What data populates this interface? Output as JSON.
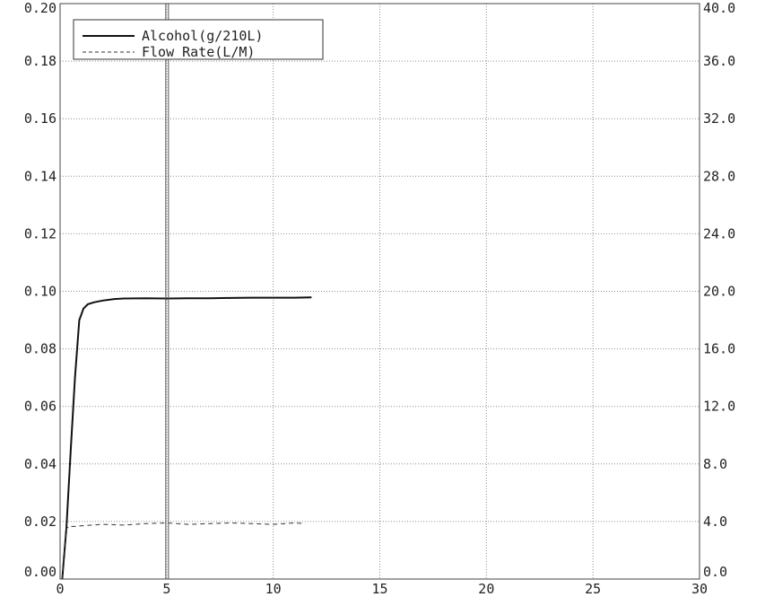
{
  "chart_data": {
    "type": "line",
    "title": "",
    "xlabel": "",
    "ylabel": "",
    "xlim": [
      0,
      30
    ],
    "ylim": [
      0,
      0.2
    ],
    "y2lim": [
      0,
      40
    ],
    "grid": true,
    "legend_position": "top-left",
    "x_ticks": [
      "0",
      "5",
      "10",
      "15",
      "20",
      "25",
      "30"
    ],
    "y_ticks": [
      "0.00",
      "0.02",
      "0.04",
      "0.06",
      "0.08",
      "0.10",
      "0.12",
      "0.14",
      "0.16",
      "0.18",
      "0.20"
    ],
    "y2_ticks": [
      "0.0",
      "4.0",
      "8.0",
      "12.0",
      "16.0",
      "20.0",
      "24.0",
      "28.0",
      "32.0",
      "36.0",
      "40.0"
    ],
    "series": [
      {
        "name": "Alcohol(g/210L)",
        "axis": "left",
        "style": "solid",
        "color": "#111111",
        "x": [
          0.1,
          0.3,
          0.5,
          0.7,
          0.9,
          1.1,
          1.3,
          1.6,
          2.0,
          2.5,
          3.0,
          4.0,
          5.0,
          6.0,
          7.0,
          8.0,
          9.0,
          10.0,
          11.0,
          11.8
        ],
        "y": [
          0.0,
          0.018,
          0.045,
          0.07,
          0.09,
          0.094,
          0.0955,
          0.0962,
          0.0968,
          0.0973,
          0.0975,
          0.0976,
          0.0975,
          0.0976,
          0.0976,
          0.0977,
          0.0978,
          0.0978,
          0.0978,
          0.0979
        ]
      },
      {
        "name": "Flow Rate(L/M)",
        "axis": "right",
        "style": "dashed",
        "color": "#333333",
        "x": [
          0.1,
          0.2,
          0.3,
          0.45,
          0.6,
          1.0,
          2.0,
          3.0,
          4.0,
          5.0,
          6.0,
          7.0,
          8.0,
          9.0,
          10.0,
          11.0,
          11.5
        ],
        "y": [
          0.0,
          1.8,
          3.5,
          3.7,
          3.65,
          3.7,
          3.8,
          3.75,
          3.85,
          3.9,
          3.8,
          3.85,
          3.9,
          3.85,
          3.8,
          3.9,
          3.85
        ]
      }
    ]
  }
}
